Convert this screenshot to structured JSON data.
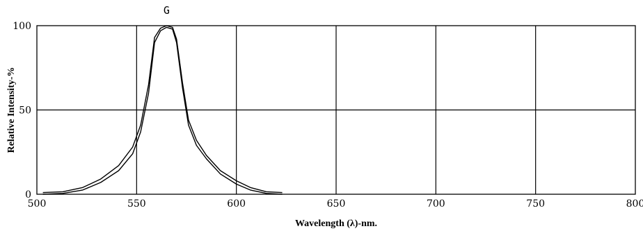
{
  "chart_data": {
    "type": "line",
    "xlabel": "Wavelength (λ)-nm.",
    "ylabel": "Relative Intensity-%",
    "xlim": [
      500,
      800
    ],
    "ylim": [
      0,
      100
    ],
    "x_ticks": [
      500,
      550,
      600,
      650,
      700,
      750,
      800
    ],
    "y_ticks": [
      0,
      50,
      100
    ],
    "grid": true,
    "annotations": [
      {
        "text": "G",
        "x": 565
      }
    ],
    "series": [
      {
        "name": "",
        "x": [
          503,
          513,
          523,
          532,
          541,
          548,
          552,
          556,
          559,
          562,
          565,
          568,
          570,
          573,
          576,
          580,
          585,
          592,
          600,
          607,
          615,
          623
        ],
        "y": [
          1,
          1.5,
          4,
          9,
          17,
          28,
          41,
          65,
          93,
          98.5,
          100,
          99,
          92,
          66,
          44,
          32,
          23,
          14,
          8,
          4,
          1.5,
          1
        ]
      },
      {
        "name": "",
        "x": [
          503,
          513,
          523,
          532,
          541,
          548,
          552,
          556,
          559,
          562,
          565,
          568,
          570,
          573,
          576,
          580,
          585,
          592,
          600,
          607,
          615,
          623
        ],
        "y": [
          0,
          0.5,
          2.5,
          7,
          14,
          24,
          37,
          60,
          90,
          97,
          99,
          98,
          90,
          63,
          41,
          29,
          21,
          12,
          6,
          2.5,
          0.5,
          0
        ]
      }
    ]
  }
}
